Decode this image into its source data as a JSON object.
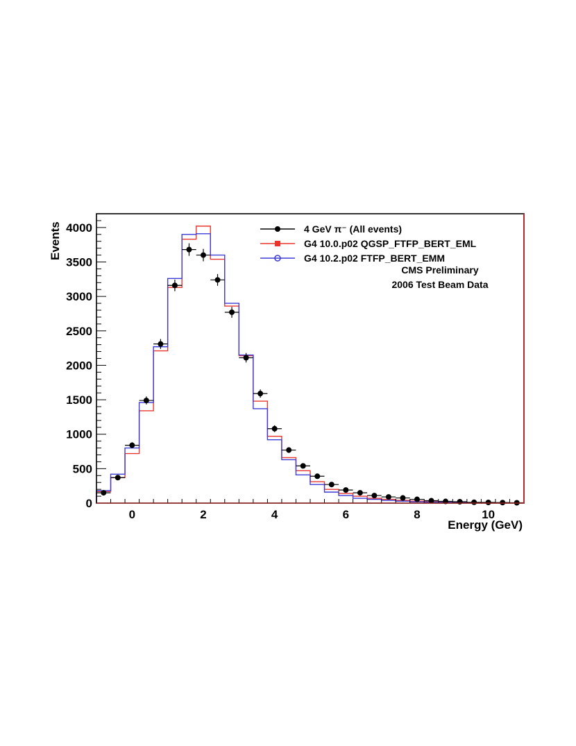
{
  "chart_data": {
    "type": "line",
    "title": "",
    "xlabel": "Energy (GeV)",
    "ylabel": "Events",
    "xlim": [
      -1,
      11
    ],
    "ylim": [
      0,
      4200
    ],
    "x_ticks": [
      0,
      2,
      4,
      6,
      8,
      10
    ],
    "y_ticks": [
      0,
      500,
      1000,
      1500,
      2000,
      2500,
      3000,
      3500,
      4000
    ],
    "grid": false,
    "legend_position": "top-right",
    "bin_edges": [
      -1,
      -0.6,
      -0.2,
      0.2,
      0.6,
      1.0,
      1.4,
      1.8,
      2.2,
      2.6,
      3.0,
      3.4,
      3.8,
      4.2,
      4.6,
      5.0,
      5.4,
      5.8,
      6.2,
      6.6,
      7.0,
      7.4,
      7.8,
      8.2,
      8.6,
      9.0,
      9.4,
      9.8,
      10.2,
      10.6,
      11.0
    ],
    "series": [
      {
        "name": "4 GeV π⁻ (All events)",
        "style": "points",
        "color": "#000000",
        "x": [
          -0.8,
          -0.4,
          0.0,
          0.4,
          0.8,
          1.2,
          1.6,
          2.0,
          2.4,
          2.8,
          3.2,
          3.6,
          4.0,
          4.4,
          4.8,
          5.2,
          5.6,
          6.0,
          6.4,
          6.8,
          7.2,
          7.6,
          8.0,
          8.4,
          8.8,
          9.2,
          9.6,
          10.0,
          10.4,
          10.8
        ],
        "values": [
          150,
          370,
          840,
          1490,
          2310,
          3160,
          3680,
          3600,
          3240,
          2770,
          2110,
          1590,
          1080,
          770,
          540,
          390,
          270,
          190,
          150,
          110,
          90,
          75,
          55,
          35,
          25,
          20,
          12,
          10,
          8,
          5
        ]
      },
      {
        "name": "G4 10.0.p02 QGSP_FTFP_BERT_EML",
        "style": "step",
        "color": "#e8362d",
        "values": [
          170,
          370,
          720,
          1340,
          2210,
          3130,
          3830,
          4020,
          3540,
          2860,
          2140,
          1480,
          970,
          660,
          470,
          310,
          200,
          140,
          100,
          70,
          55,
          40,
          30,
          22,
          16,
          12,
          8,
          6,
          4,
          3
        ]
      },
      {
        "name": "G4 10.2.p02 FTFP_BERT_EMM",
        "style": "step",
        "color": "#3b3bd6",
        "values": [
          180,
          420,
          800,
          1460,
          2270,
          3260,
          3900,
          3910,
          3600,
          2900,
          2150,
          1370,
          920,
          630,
          410,
          270,
          160,
          110,
          70,
          55,
          40,
          28,
          20,
          15,
          12,
          9,
          6,
          4,
          3,
          2
        ]
      }
    ],
    "annotations": [
      "CMS Preliminary",
      "2006 Test Beam Data"
    ]
  }
}
